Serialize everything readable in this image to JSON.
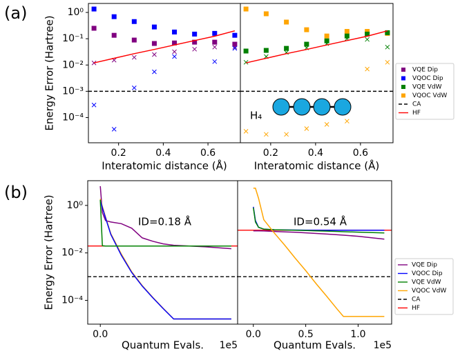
{
  "panel_labels": [
    "(a)",
    "(b)"
  ],
  "legends": [
    {
      "entries": [
        {
          "name": "VQE Dip",
          "color": "#800080",
          "style": "square"
        },
        {
          "name": "VQOC Dip",
          "color": "#0000ff",
          "style": "square"
        },
        {
          "name": "VQE VdW",
          "color": "#008000",
          "style": "square"
        },
        {
          "name": "VQOC VdW",
          "color": "#ffa500",
          "style": "square"
        },
        {
          "name": "CA",
          "color": "#000000",
          "style": "dashed"
        },
        {
          "name": "HF",
          "color": "#ff0000",
          "style": "line"
        }
      ]
    },
    {
      "entries": [
        {
          "name": "VQE Dip",
          "color": "#800080",
          "style": "line"
        },
        {
          "name": "VQOC Dip",
          "color": "#0000ff",
          "style": "line"
        },
        {
          "name": "VQE VdW",
          "color": "#008000",
          "style": "line"
        },
        {
          "name": "VQOC VdW",
          "color": "#ffa500",
          "style": "line"
        },
        {
          "name": "CA",
          "color": "#000000",
          "style": "dashed"
        },
        {
          "name": "HF",
          "color": "#ff0000",
          "style": "line"
        }
      ]
    }
  ],
  "chart_data": [
    {
      "type": "scatter",
      "log_y": true,
      "ylabel": "Energy Error (Hartree)",
      "xlabel": "Interatomic distance (Å)",
      "xlim": [
        0.065,
        0.745
      ],
      "ylim": [
        1.1e-05,
        2.2
      ],
      "xticks": [
        0.2,
        0.4,
        0.6
      ],
      "yticks": [
        {
          "value": 1,
          "label": "10⁰"
        },
        {
          "value": 0.1,
          "label": "10⁻¹"
        },
        {
          "value": 0.01,
          "label": "10⁻²"
        },
        {
          "value": 0.001,
          "label": "10⁻³"
        },
        {
          "value": 0.0001,
          "label": "10⁻⁴"
        }
      ],
      "x": [
        0.09,
        0.18,
        0.27,
        0.36,
        0.45,
        0.54,
        0.63,
        0.72
      ],
      "series": [
        {
          "color": "#800080",
          "style": "square",
          "values": [
            0.25,
            0.135,
            0.089,
            0.066,
            0.069,
            0.074,
            0.074,
            0.062
          ]
        },
        {
          "color": "#0000ff",
          "style": "square",
          "values": [
            1.35,
            0.69,
            0.45,
            0.28,
            0.18,
            0.15,
            0.16,
            0.135
          ]
        },
        {
          "color": "#800080",
          "style": "cross",
          "values": [
            0.012,
            0.0153,
            0.0195,
            0.025,
            0.032,
            0.04,
            0.048,
            0.048
          ]
        },
        {
          "color": "#0000ff",
          "style": "cross",
          "values": [
            0.0003,
            3.6e-05,
            0.00135,
            0.0055,
            0.021,
            null,
            0.0135,
            0.043
          ]
        },
        {
          "color": "#ff0000",
          "style": "line",
          "values": [
            0.012,
            0.018,
            0.027,
            0.039,
            0.058,
            0.085,
            0.125,
            0.2
          ]
        }
      ],
      "hlines": [
        {
          "value": 0.001,
          "color": "#000000",
          "style": "dashed"
        }
      ]
    },
    {
      "type": "scatter",
      "log_y": true,
      "xlabel": "Interatomic distance (Å)",
      "annotation": "H₄",
      "xlim": [
        0.065,
        0.745
      ],
      "ylim": [
        1.1e-05,
        2.2
      ],
      "xticks": [
        0.2,
        0.4,
        0.6
      ],
      "x": [
        0.09,
        0.18,
        0.27,
        0.36,
        0.45,
        0.54,
        0.63,
        0.72
      ],
      "series": [
        {
          "color": "#ffa500",
          "style": "square",
          "values": [
            1.35,
            0.89,
            0.43,
            0.22,
            0.127,
            0.19,
            0.19,
            0.16
          ]
        },
        {
          "color": "#008000",
          "style": "square",
          "values": [
            0.034,
            0.036,
            0.043,
            0.062,
            0.083,
            0.127,
            0.15,
            0.17
          ]
        },
        {
          "color": "#008000",
          "style": "cross",
          "values": [
            0.0127,
            0.021,
            0.03,
            0.045,
            0.065,
            0.1,
            0.094,
            0.048
          ]
        },
        {
          "color": "#ffa500",
          "style": "cross",
          "values": [
            3e-05,
            2.3e-05,
            2.3e-05,
            3.8e-05,
            5.5e-05,
            7.3e-05,
            0.007,
            0.0127
          ]
        },
        {
          "color": "#ff0000",
          "style": "line",
          "values": [
            0.012,
            0.018,
            0.027,
            0.039,
            0.058,
            0.085,
            0.125,
            0.2
          ]
        }
      ],
      "hlines": [
        {
          "value": 0.001,
          "color": "#000000",
          "style": "dashed"
        }
      ]
    },
    {
      "type": "line",
      "log_y": true,
      "ylabel": "Energy Error (Hartree)",
      "xlabel": "Quantum Evals.",
      "x_offset_label": "1e5",
      "annotation": "ID=0.18 Å",
      "xlim": [
        -0.12,
        1.31
      ],
      "ylim": [
        1e-05,
        11
      ],
      "xticks": [
        {
          "value": 0,
          "label": "0.0"
        }
      ],
      "yticks": [
        {
          "value": 1,
          "label": "10⁰"
        },
        {
          "value": 0.01,
          "label": "10⁻²"
        },
        {
          "value": 0.0001,
          "label": "10⁻⁴"
        }
      ],
      "x": [
        0,
        0.02,
        0.05,
        0.1,
        0.2,
        0.3,
        0.4,
        0.5,
        0.6,
        0.7,
        1.0,
        1.25
      ],
      "series": [
        {
          "color": "#800080",
          "style": "line",
          "values": [
            6.5,
            0.5,
            0.23,
            0.2,
            0.17,
            0.11,
            0.043,
            0.031,
            0.024,
            0.021,
            0.018,
            0.015
          ]
        },
        {
          "color": "#ffa500",
          "style": "line",
          "values": [
            1.9,
            0.9,
            0.32,
            0.065,
            0.009,
            0.0016,
            0.00042,
            0.000135,
            4.6e-05,
            1.65e-05,
            1.65e-05,
            1.65e-05
          ]
        },
        {
          "color": "#0000ff",
          "style": "line",
          "values": [
            1.7,
            0.8,
            0.3,
            0.06,
            0.008,
            0.0015,
            0.0004,
            0.00013,
            4.5e-05,
            1.65e-05,
            1.65e-05,
            1.65e-05
          ]
        },
        {
          "color": "#008000",
          "style": "line",
          "values": [
            1.7,
            0.02,
            0.0195,
            0.0195,
            0.0195,
            0.0195,
            0.0195,
            0.0195,
            0.0195,
            0.0195,
            0.0195,
            0.0195
          ]
        }
      ],
      "hlines": [
        {
          "value": 0.001,
          "color": "#000000",
          "style": "dashed"
        },
        {
          "value": 0.0195,
          "color": "#ff0000",
          "style": "line"
        }
      ]
    },
    {
      "type": "line",
      "log_y": true,
      "xlabel": "Quantum Evals.",
      "x_offset_label": "1e5",
      "annotation": "ID=0.54 Å",
      "xlim": [
        -0.15,
        1.32
      ],
      "ylim": [
        1e-05,
        11
      ],
      "xticks": [
        {
          "value": 0,
          "label": "0.0"
        },
        0.5,
        {
          "value": 1,
          "label": "1.0"
        }
      ],
      "x": [
        0,
        0.02,
        0.05,
        0.1,
        0.2,
        0.3,
        0.4,
        0.5,
        0.6,
        0.7,
        0.8,
        0.86,
        1.0,
        1.25
      ],
      "series": [
        {
          "color": "#800080",
          "style": "line",
          "values": [
            0.085,
            0.085,
            0.085,
            0.084,
            0.08,
            0.077,
            0.074,
            0.07,
            0.066,
            0.062,
            0.058,
            0.056,
            0.05,
            0.038
          ]
        },
        {
          "color": "#0000ff",
          "style": "line",
          "values": [
            0.87,
            0.23,
            0.12,
            0.1,
            0.095,
            0.093,
            0.092,
            0.091,
            0.09,
            0.09,
            0.09,
            0.09,
            0.09,
            0.09
          ]
        },
        {
          "color": "#008000",
          "style": "line",
          "values": [
            0.8,
            0.2,
            0.12,
            0.1,
            0.095,
            0.092,
            0.09,
            0.088,
            0.085,
            0.083,
            0.08,
            0.078,
            0.075,
            0.069
          ]
        },
        {
          "color": "#ffa500",
          "style": "line",
          "values": [
            5.3,
            5.3,
            2.0,
            0.25,
            0.069,
            0.021,
            0.006,
            0.0018,
            0.0005,
            0.00015,
            4.3e-05,
            2.1e-05,
            2.1e-05,
            2.1e-05
          ]
        }
      ],
      "hlines": [
        {
          "value": 0.001,
          "color": "#000000",
          "style": "dashed"
        },
        {
          "value": 0.09,
          "color": "#ff0000",
          "style": "line"
        }
      ]
    }
  ]
}
